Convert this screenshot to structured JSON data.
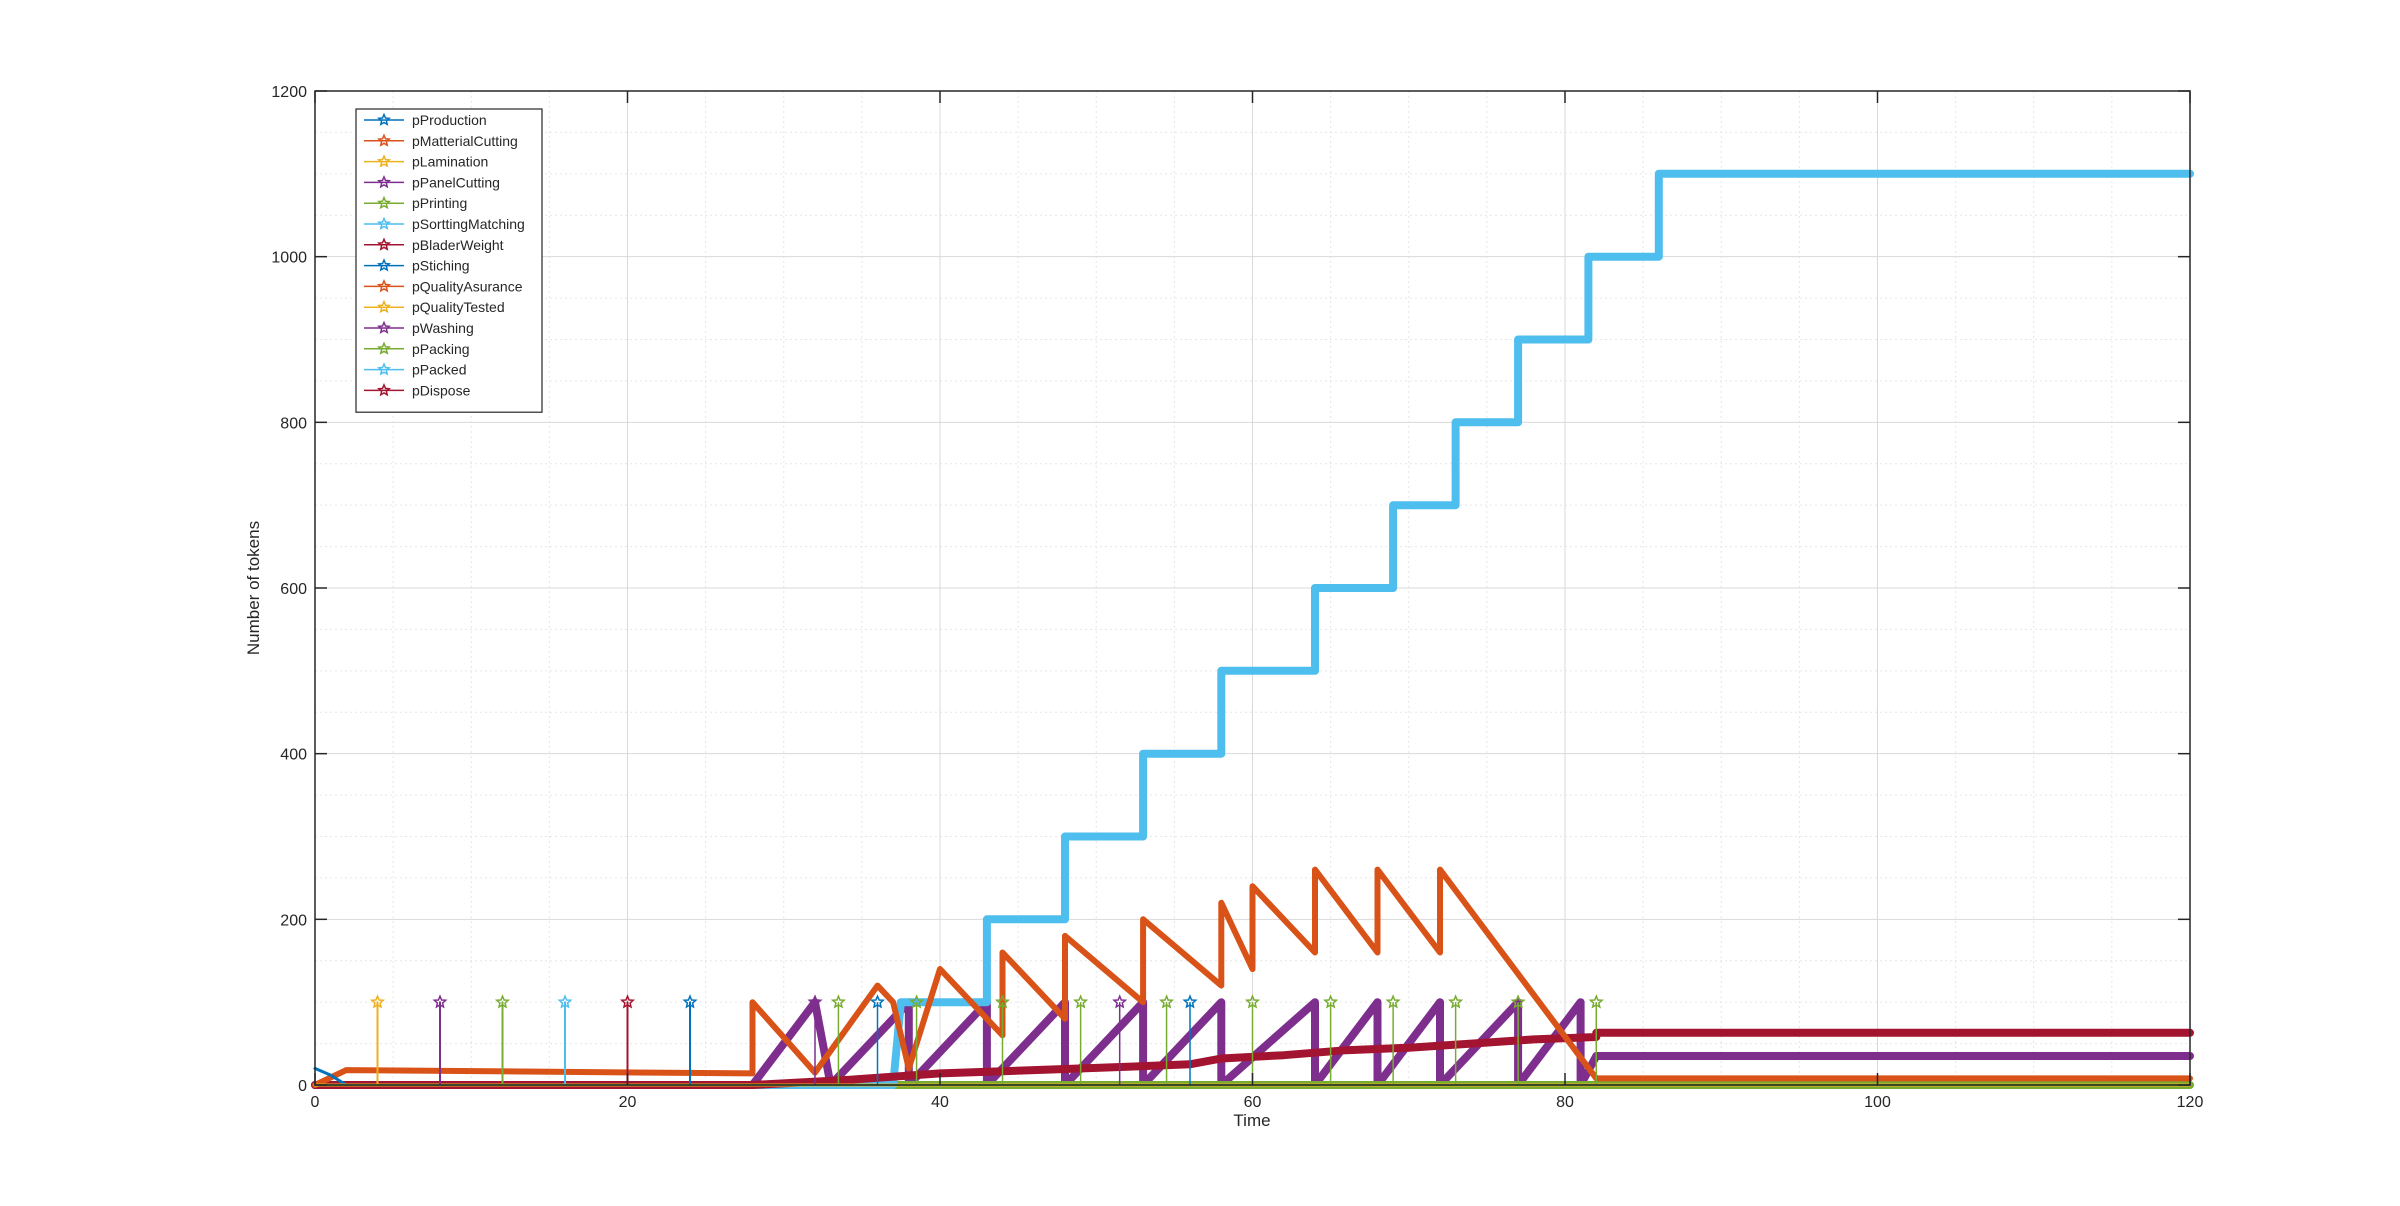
{
  "chart_data": {
    "type": "line",
    "title": "",
    "xlabel": "Time",
    "ylabel": "Number of tokens",
    "xlim": [
      0,
      120
    ],
    "ylim": [
      0,
      1200
    ],
    "x_ticks": [
      0,
      20,
      40,
      60,
      80,
      100,
      120
    ],
    "y_ticks": [
      0,
      200,
      400,
      600,
      800,
      1000,
      1200
    ],
    "x_tick_labels": [
      "0",
      "20",
      "40",
      "60",
      "80",
      "100",
      "120"
    ],
    "y_tick_labels": [
      "0",
      "200",
      "400",
      "600",
      "800",
      "1000",
      "1200"
    ],
    "grid": true,
    "minor_grid": true,
    "legend_position": "top-left",
    "series": [
      {
        "name": "pProduction",
        "color": "#0072BD",
        "marker": "star",
        "width": 3,
        "points": [
          [
            0,
            20
          ],
          [
            1,
            12
          ],
          [
            2,
            0
          ],
          [
            120,
            0
          ]
        ]
      },
      {
        "name": "pMatterialCutting",
        "color": "#D95319",
        "marker": "star",
        "width": 6,
        "points": [
          [
            0,
            0
          ],
          [
            2,
            18
          ],
          [
            28,
            14
          ],
          [
            28,
            100
          ],
          [
            32,
            15
          ],
          [
            36,
            120
          ],
          [
            37,
            100
          ],
          [
            38,
            20
          ],
          [
            40,
            140
          ],
          [
            44,
            60
          ],
          [
            44,
            160
          ],
          [
            48,
            80
          ],
          [
            48,
            180
          ],
          [
            53,
            100
          ],
          [
            53,
            200
          ],
          [
            58,
            120
          ],
          [
            58,
            220
          ],
          [
            60,
            140
          ],
          [
            60,
            240
          ],
          [
            64,
            160
          ],
          [
            64,
            260
          ],
          [
            68,
            160
          ],
          [
            68,
            260
          ],
          [
            72,
            160
          ],
          [
            72,
            260
          ],
          [
            82,
            8
          ],
          [
            120,
            8
          ]
        ]
      },
      {
        "name": "pLamination",
        "color": "#EDB120",
        "marker": "star",
        "width": 2,
        "points": [
          [
            0,
            0
          ],
          [
            4,
            0
          ],
          [
            4,
            100
          ],
          [
            4,
            0
          ],
          [
            120,
            0
          ]
        ]
      },
      {
        "name": "pPanelCutting",
        "color": "#7E2F8E",
        "marker": "star",
        "width": 8,
        "points": [
          [
            0,
            0
          ],
          [
            28,
            0
          ],
          [
            32,
            100
          ],
          [
            33,
            0
          ],
          [
            38,
            100
          ],
          [
            38,
            0
          ],
          [
            43,
            100
          ],
          [
            43,
            0
          ],
          [
            48,
            100
          ],
          [
            48,
            0
          ],
          [
            53,
            100
          ],
          [
            53,
            0
          ],
          [
            58,
            100
          ],
          [
            58,
            0
          ],
          [
            64,
            100
          ],
          [
            64,
            0
          ],
          [
            68,
            100
          ],
          [
            68,
            0
          ],
          [
            72,
            100
          ],
          [
            72,
            0
          ],
          [
            77,
            100
          ],
          [
            77,
            0
          ],
          [
            81,
            100
          ],
          [
            81,
            0
          ],
          [
            82,
            35
          ],
          [
            120,
            35
          ]
        ]
      },
      {
        "name": "pPrinting",
        "color": "#77AC30",
        "marker": "star",
        "width": 8,
        "points": [
          [
            0,
            0
          ],
          [
            120,
            0
          ]
        ]
      },
      {
        "name": "pSorttingMatching",
        "color": "#4DBEEE",
        "marker": "star",
        "width": 2,
        "points": [
          [
            0,
            0
          ],
          [
            16,
            0
          ],
          [
            16,
            100
          ],
          [
            16,
            0
          ],
          [
            120,
            0
          ]
        ]
      },
      {
        "name": "pBladerWeight",
        "color": "#A2142F",
        "marker": "star",
        "width": 2,
        "points": [
          [
            0,
            0
          ],
          [
            20,
            0
          ],
          [
            20,
            100
          ],
          [
            20,
            0
          ],
          [
            120,
            0
          ]
        ]
      },
      {
        "name": "pStiching",
        "color": "#0072BD",
        "marker": "star",
        "width": 2,
        "points": [
          [
            0,
            0
          ],
          [
            24,
            0
          ],
          [
            24,
            100
          ],
          [
            24,
            0
          ],
          [
            120,
            0
          ]
        ]
      },
      {
        "name": "pQualityAsurance",
        "color": "#D95319",
        "marker": "star",
        "width": 3,
        "points": [
          [
            0,
            0
          ],
          [
            120,
            0
          ]
        ]
      },
      {
        "name": "pQualityTested",
        "color": "#EDB120",
        "marker": "star",
        "width": 3,
        "points": [
          [
            0,
            0
          ],
          [
            120,
            0
          ]
        ]
      },
      {
        "name": "pWashing",
        "color": "#7E2F8E",
        "marker": "star",
        "width": 2,
        "points": [
          [
            0,
            0
          ],
          [
            8,
            0
          ],
          [
            8,
            100
          ],
          [
            8,
            0
          ],
          [
            120,
            0
          ]
        ]
      },
      {
        "name": "pPacking",
        "color": "#77AC30",
        "marker": "star",
        "width": 2,
        "points": [
          [
            0,
            0
          ],
          [
            12,
            0
          ],
          [
            12,
            100
          ],
          [
            12,
            0
          ],
          [
            120,
            0
          ]
        ]
      },
      {
        "name": "pPacked",
        "color": "#4DBEEE",
        "marker": "star",
        "width": 8,
        "points": [
          [
            0,
            0
          ],
          [
            37,
            0
          ],
          [
            37.5,
            100
          ],
          [
            43,
            100
          ],
          [
            43,
            200
          ],
          [
            48,
            200
          ],
          [
            48,
            300
          ],
          [
            53,
            300
          ],
          [
            53,
            400
          ],
          [
            58,
            400
          ],
          [
            58,
            500
          ],
          [
            64,
            500
          ],
          [
            64,
            600
          ],
          [
            69,
            600
          ],
          [
            69,
            700
          ],
          [
            73,
            700
          ],
          [
            73,
            800
          ],
          [
            77,
            800
          ],
          [
            77,
            900
          ],
          [
            81.5,
            900
          ],
          [
            81.5,
            1000
          ],
          [
            86,
            1000
          ],
          [
            86,
            1100
          ],
          [
            120,
            1100
          ]
        ]
      },
      {
        "name": "pDispose",
        "color": "#A2142F",
        "marker": "star",
        "width": 8,
        "points": [
          [
            0,
            0
          ],
          [
            28,
            0
          ],
          [
            34,
            6
          ],
          [
            40,
            14
          ],
          [
            46,
            18
          ],
          [
            52,
            22
          ],
          [
            56,
            25
          ],
          [
            58,
            32
          ],
          [
            62,
            36
          ],
          [
            66,
            42
          ],
          [
            70,
            45
          ],
          [
            74,
            50
          ],
          [
            78,
            55
          ],
          [
            82,
            58
          ],
          [
            82,
            63
          ],
          [
            120,
            63
          ]
        ]
      }
    ],
    "spikes": [
      {
        "x": 4,
        "series": 2
      },
      {
        "x": 8,
        "series": 10
      },
      {
        "x": 12,
        "series": 11
      },
      {
        "x": 16,
        "series": 5
      },
      {
        "x": 20,
        "series": 6
      },
      {
        "x": 24,
        "series": 7
      },
      {
        "x": 32,
        "series": 3
      },
      {
        "x": 33.5,
        "series": 4
      },
      {
        "x": 36,
        "series": 7
      },
      {
        "x": 38.5,
        "series": 11
      },
      {
        "x": 44,
        "series": 11
      },
      {
        "x": 49,
        "series": 4
      },
      {
        "x": 51.5,
        "series": 10
      },
      {
        "x": 54.5,
        "series": 4
      },
      {
        "x": 56,
        "series": 7
      },
      {
        "x": 60,
        "series": 11
      },
      {
        "x": 65,
        "series": 4
      },
      {
        "x": 69,
        "series": 4
      },
      {
        "x": 73,
        "series": 4
      },
      {
        "x": 77,
        "series": 4
      },
      {
        "x": 82,
        "series": 4
      }
    ]
  }
}
